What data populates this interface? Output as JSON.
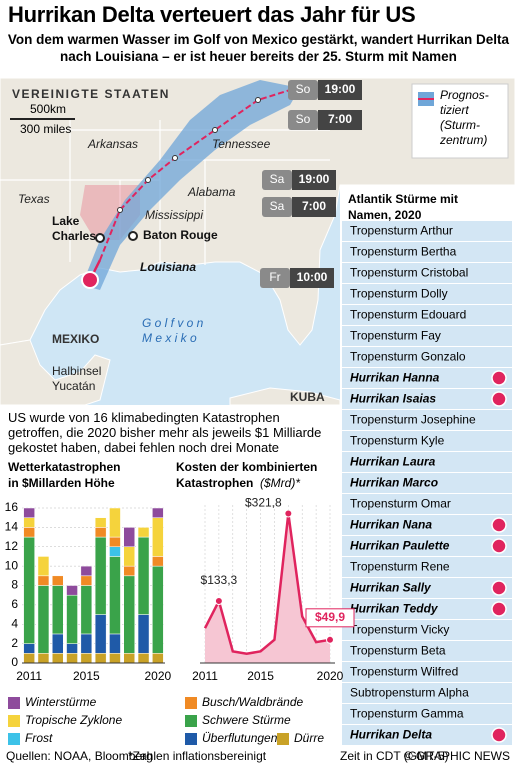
{
  "header": {
    "title": "Hurrikan Delta verteuert das Jahr für US",
    "subtitle": "Von dem warmen Wasser im Golf von Mexico gestärkt, wandert Hurrikan Delta nach Louisiana – er ist heuer bereits der 25. Sturm mit Namen"
  },
  "map": {
    "labels": [
      {
        "lines": [
          "VEREINIGTE STAATEN"
        ]
      },
      {
        "lines": [
          "Arkansas"
        ]
      },
      {
        "lines": [
          "Tennessee"
        ]
      },
      {
        "lines": [
          "Texas"
        ]
      },
      {
        "lines": [
          "Alabama"
        ]
      },
      {
        "lines": [
          "Mississippi"
        ]
      },
      {
        "lines": [
          "Lake",
          "Charles"
        ]
      },
      {
        "lines": [
          "Baton Rouge"
        ]
      },
      {
        "lines": [
          "Louisiana"
        ]
      },
      {
        "lines": [
          "MEXIKO"
        ]
      },
      {
        "lines": [
          "G o l f   v o n",
          "M e x i k o"
        ]
      },
      {
        "lines": [
          "Halbinsel",
          "Yucatán"
        ]
      },
      {
        "lines": [
          "KUBA"
        ]
      }
    ],
    "scale": [
      "500km",
      "300 miles"
    ],
    "legend": [
      "Prognos-",
      "tiziert",
      "(Sturm-",
      "zentrum)"
    ],
    "time_boxes": [
      {
        "day": "So",
        "time": "19:00"
      },
      {
        "day": "So",
        "time": "7:00"
      },
      {
        "day": "Sa",
        "time": "19:00"
      },
      {
        "day": "Sa",
        "time": "7:00"
      },
      {
        "day": "Fr",
        "time": "10:00"
      }
    ]
  },
  "storms": {
    "title": "Atlantik Stürme mit Namen, 2020",
    "items": [
      {
        "name": "Tropensturm Arthur",
        "hurricane": false,
        "icon": false
      },
      {
        "name": "Tropensturm Bertha",
        "hurricane": false,
        "icon": false
      },
      {
        "name": "Tropensturm Cristobal",
        "hurricane": false,
        "icon": false
      },
      {
        "name": "Tropensturm Dolly",
        "hurricane": false,
        "icon": false
      },
      {
        "name": "Tropensturm Edouard",
        "hurricane": false,
        "icon": false
      },
      {
        "name": "Tropensturm Fay",
        "hurricane": false,
        "icon": false
      },
      {
        "name": "Tropensturm Gonzalo",
        "hurricane": false,
        "icon": false
      },
      {
        "name": "Hurrikan Hanna",
        "hurricane": true,
        "icon": true
      },
      {
        "name": "Hurrikan Isaias",
        "hurricane": true,
        "icon": true
      },
      {
        "name": "Tropensturm Josephine",
        "hurricane": false,
        "icon": false
      },
      {
        "name": "Tropensturm Kyle",
        "hurricane": false,
        "icon": false
      },
      {
        "name": "Hurrikan Laura",
        "hurricane": true,
        "icon": false
      },
      {
        "name": "Hurrikan Marco",
        "hurricane": true,
        "icon": false
      },
      {
        "name": "Tropensturm Omar",
        "hurricane": false,
        "icon": false
      },
      {
        "name": "Hurrikan Nana",
        "hurricane": true,
        "icon": true
      },
      {
        "name": "Hurrikan Paulette",
        "hurricane": true,
        "icon": true
      },
      {
        "name": "Tropensturm Rene",
        "hurricane": false,
        "icon": false
      },
      {
        "name": "Hurrikan Sally",
        "hurricane": true,
        "icon": true
      },
      {
        "name": "Hurrikan Teddy",
        "hurricane": true,
        "icon": true
      },
      {
        "name": "Tropensturm Vicky",
        "hurricane": false,
        "icon": false
      },
      {
        "name": "Tropensturm Beta",
        "hurricane": false,
        "icon": false
      },
      {
        "name": "Tropensturm Wilfred",
        "hurricane": false,
        "icon": false
      },
      {
        "name": "Subtropensturm Alpha",
        "hurricane": false,
        "icon": false
      },
      {
        "name": "Tropensturm Gamma",
        "hurricane": false,
        "icon": false
      },
      {
        "name": "Hurrikan Delta",
        "hurricane": true,
        "icon": true
      }
    ]
  },
  "summary": "US wurde von 16 klimabedingten Katastrophen getroffen, die 2020 bisher mehr als jeweils $1 Milliarde gekostet haben, dabei fehlen noch drei Monate",
  "chart_data": [
    {
      "type": "bar",
      "stacked": true,
      "title": [
        "Wetterkatastrophen",
        "in $Millarden Höhe"
      ],
      "categories": [
        2011,
        null,
        null,
        null,
        2015,
        null,
        null,
        null,
        null,
        2020
      ],
      "series": [
        {
          "name": "Winterstürme",
          "color": "#8e4b9c",
          "values": [
            1,
            0,
            0,
            1,
            1,
            0,
            0,
            2,
            0,
            1
          ]
        },
        {
          "name": "Busch/Waldbrände",
          "color": "#f08a24",
          "values": [
            1,
            1,
            1,
            0,
            1,
            1,
            1,
            1,
            0,
            1
          ]
        },
        {
          "name": "Tropische Zyklone",
          "color": "#f5d33c",
          "values": [
            1,
            2,
            0,
            0,
            0,
            1,
            3,
            2,
            1,
            4
          ]
        },
        {
          "name": "Schwere Stürme",
          "color": "#3aa34a",
          "values": [
            11,
            7,
            5,
            5,
            5,
            8,
            8,
            8,
            8,
            9
          ]
        },
        {
          "name": "Frost",
          "color": "#3cc2e8",
          "values": [
            0,
            0,
            0,
            0,
            0,
            0,
            1,
            0,
            0,
            0
          ]
        },
        {
          "name": "Überflutungen",
          "color": "#1f5aa8",
          "values": [
            1,
            0,
            2,
            1,
            2,
            4,
            2,
            0,
            4,
            0
          ]
        },
        {
          "name": "Dürre",
          "color": "#c9a227",
          "values": [
            1,
            1,
            1,
            1,
            1,
            1,
            1,
            1,
            1,
            1
          ]
        }
      ],
      "ylim": [
        0,
        16
      ],
      "yticks": [
        0,
        2,
        4,
        6,
        8,
        10,
        12,
        14,
        16
      ],
      "grid": true
    },
    {
      "type": "line",
      "title": [
        "Kosten der kombinierten",
        "Katastrophen"
      ],
      "unit": "($Mrd)*",
      "categories": [
        2011,
        null,
        null,
        null,
        2015,
        null,
        null,
        null,
        null,
        2020
      ],
      "values": [
        75,
        133.3,
        25,
        20,
        25,
        50,
        321.8,
        100,
        45,
        49.9
      ],
      "value_labels": [
        null,
        "$133,3",
        null,
        null,
        null,
        null,
        "$321,8",
        null,
        null,
        "$49,9"
      ],
      "color": "#e0245e",
      "ylim": [
        0,
        340
      ]
    }
  ],
  "footer": {
    "sources": "Quellen: NOAA, Bloomberg",
    "note": "*Zahlen inflationsbereinigt",
    "time": "Zeit in CDT (GMT-5)",
    "credit": "© GRAPHIC NEWS"
  }
}
